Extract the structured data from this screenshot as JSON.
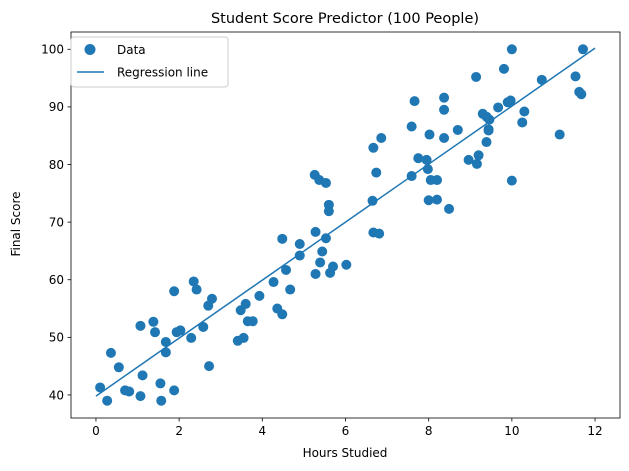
{
  "chart_data": {
    "type": "scatter",
    "title": "Student Score Predictor (100 People)",
    "xlabel": "Hours Studied",
    "ylabel": "Final Score",
    "xlim": [
      -0.6,
      12.6
    ],
    "ylim": [
      36,
      103
    ],
    "xticks": [
      0,
      2,
      4,
      6,
      8,
      10,
      12
    ],
    "yticks": [
      40,
      50,
      60,
      70,
      80,
      90,
      100
    ],
    "grid": false,
    "legend_placement": "top-left",
    "colors": {
      "points": "#1f77b4",
      "line": "#1f77b4"
    },
    "series": [
      {
        "name": "Data",
        "type": "scatter",
        "points": [
          [
            0.1,
            41.3
          ],
          [
            0.27,
            39
          ],
          [
            0.36,
            47.3
          ],
          [
            0.55,
            44.8
          ],
          [
            0.7,
            40.8
          ],
          [
            0.8,
            40.6
          ],
          [
            1.07,
            52
          ],
          [
            1.07,
            39.8
          ],
          [
            1.12,
            43.4
          ],
          [
            1.38,
            52.7
          ],
          [
            1.42,
            50.9
          ],
          [
            1.55,
            42
          ],
          [
            1.57,
            39
          ],
          [
            1.68,
            47.4
          ],
          [
            1.68,
            49.2
          ],
          [
            1.88,
            58
          ],
          [
            1.88,
            40.8
          ],
          [
            1.94,
            50.9
          ],
          [
            2.03,
            51.2
          ],
          [
            2.29,
            49.9
          ],
          [
            2.35,
            59.7
          ],
          [
            2.42,
            58.3
          ],
          [
            2.58,
            51.8
          ],
          [
            2.7,
            55.5
          ],
          [
            2.72,
            45
          ],
          [
            2.79,
            56.7
          ],
          [
            3.41,
            49.4
          ],
          [
            3.48,
            54.7
          ],
          [
            3.55,
            49.9
          ],
          [
            3.6,
            55.8
          ],
          [
            3.65,
            52.8
          ],
          [
            3.77,
            52.8
          ],
          [
            3.93,
            57.2
          ],
          [
            4.27,
            59.6
          ],
          [
            4.36,
            55
          ],
          [
            4.48,
            54
          ],
          [
            4.48,
            67.1
          ],
          [
            4.57,
            61.7
          ],
          [
            4.67,
            58.3
          ],
          [
            4.9,
            66.2
          ],
          [
            4.9,
            64.2
          ],
          [
            5.26,
            78.2
          ],
          [
            5.28,
            68.3
          ],
          [
            5.28,
            61
          ],
          [
            5.37,
            77.3
          ],
          [
            5.39,
            63
          ],
          [
            5.44,
            64.9
          ],
          [
            5.53,
            67.2
          ],
          [
            5.53,
            76.8
          ],
          [
            5.6,
            73
          ],
          [
            5.6,
            71.9
          ],
          [
            5.63,
            61.2
          ],
          [
            5.7,
            62.3
          ],
          [
            6.02,
            62.6
          ],
          [
            6.65,
            73.7
          ],
          [
            6.67,
            82.9
          ],
          [
            6.67,
            68.2
          ],
          [
            6.74,
            78.6
          ],
          [
            6.81,
            68
          ],
          [
            6.86,
            84.6
          ],
          [
            7.59,
            86.6
          ],
          [
            7.59,
            78
          ],
          [
            7.66,
            91
          ],
          [
            7.75,
            81.1
          ],
          [
            7.95,
            80.8
          ],
          [
            7.98,
            79.2
          ],
          [
            8.0,
            73.8
          ],
          [
            8.02,
            85.2
          ],
          [
            8.05,
            77.3
          ],
          [
            8.2,
            77.3
          ],
          [
            8.2,
            73.9
          ],
          [
            8.37,
            91.6
          ],
          [
            8.37,
            89.5
          ],
          [
            8.37,
            84.6
          ],
          [
            8.49,
            72.3
          ],
          [
            8.7,
            86
          ],
          [
            8.96,
            80.8
          ],
          [
            9.14,
            95.2
          ],
          [
            9.16,
            80.1
          ],
          [
            9.2,
            81.6
          ],
          [
            9.3,
            88.8
          ],
          [
            9.39,
            88.3
          ],
          [
            9.39,
            83.9
          ],
          [
            9.44,
            86.1
          ],
          [
            9.44,
            85.9
          ],
          [
            9.46,
            87.8
          ],
          [
            9.67,
            89.9
          ],
          [
            9.81,
            96.6
          ],
          [
            9.9,
            90.8
          ],
          [
            9.97,
            91.1
          ],
          [
            10.0,
            100
          ],
          [
            10.0,
            77.2
          ],
          [
            10.25,
            87.3
          ],
          [
            10.3,
            89.2
          ],
          [
            10.72,
            94.7
          ],
          [
            11.15,
            85.2
          ],
          [
            11.53,
            95.3
          ],
          [
            11.62,
            92.6
          ],
          [
            11.67,
            92.2
          ],
          [
            11.71,
            100
          ]
        ]
      },
      {
        "name": "Regression line",
        "type": "line",
        "points": [
          [
            0,
            39.8
          ],
          [
            12,
            100.2
          ]
        ]
      }
    ]
  }
}
